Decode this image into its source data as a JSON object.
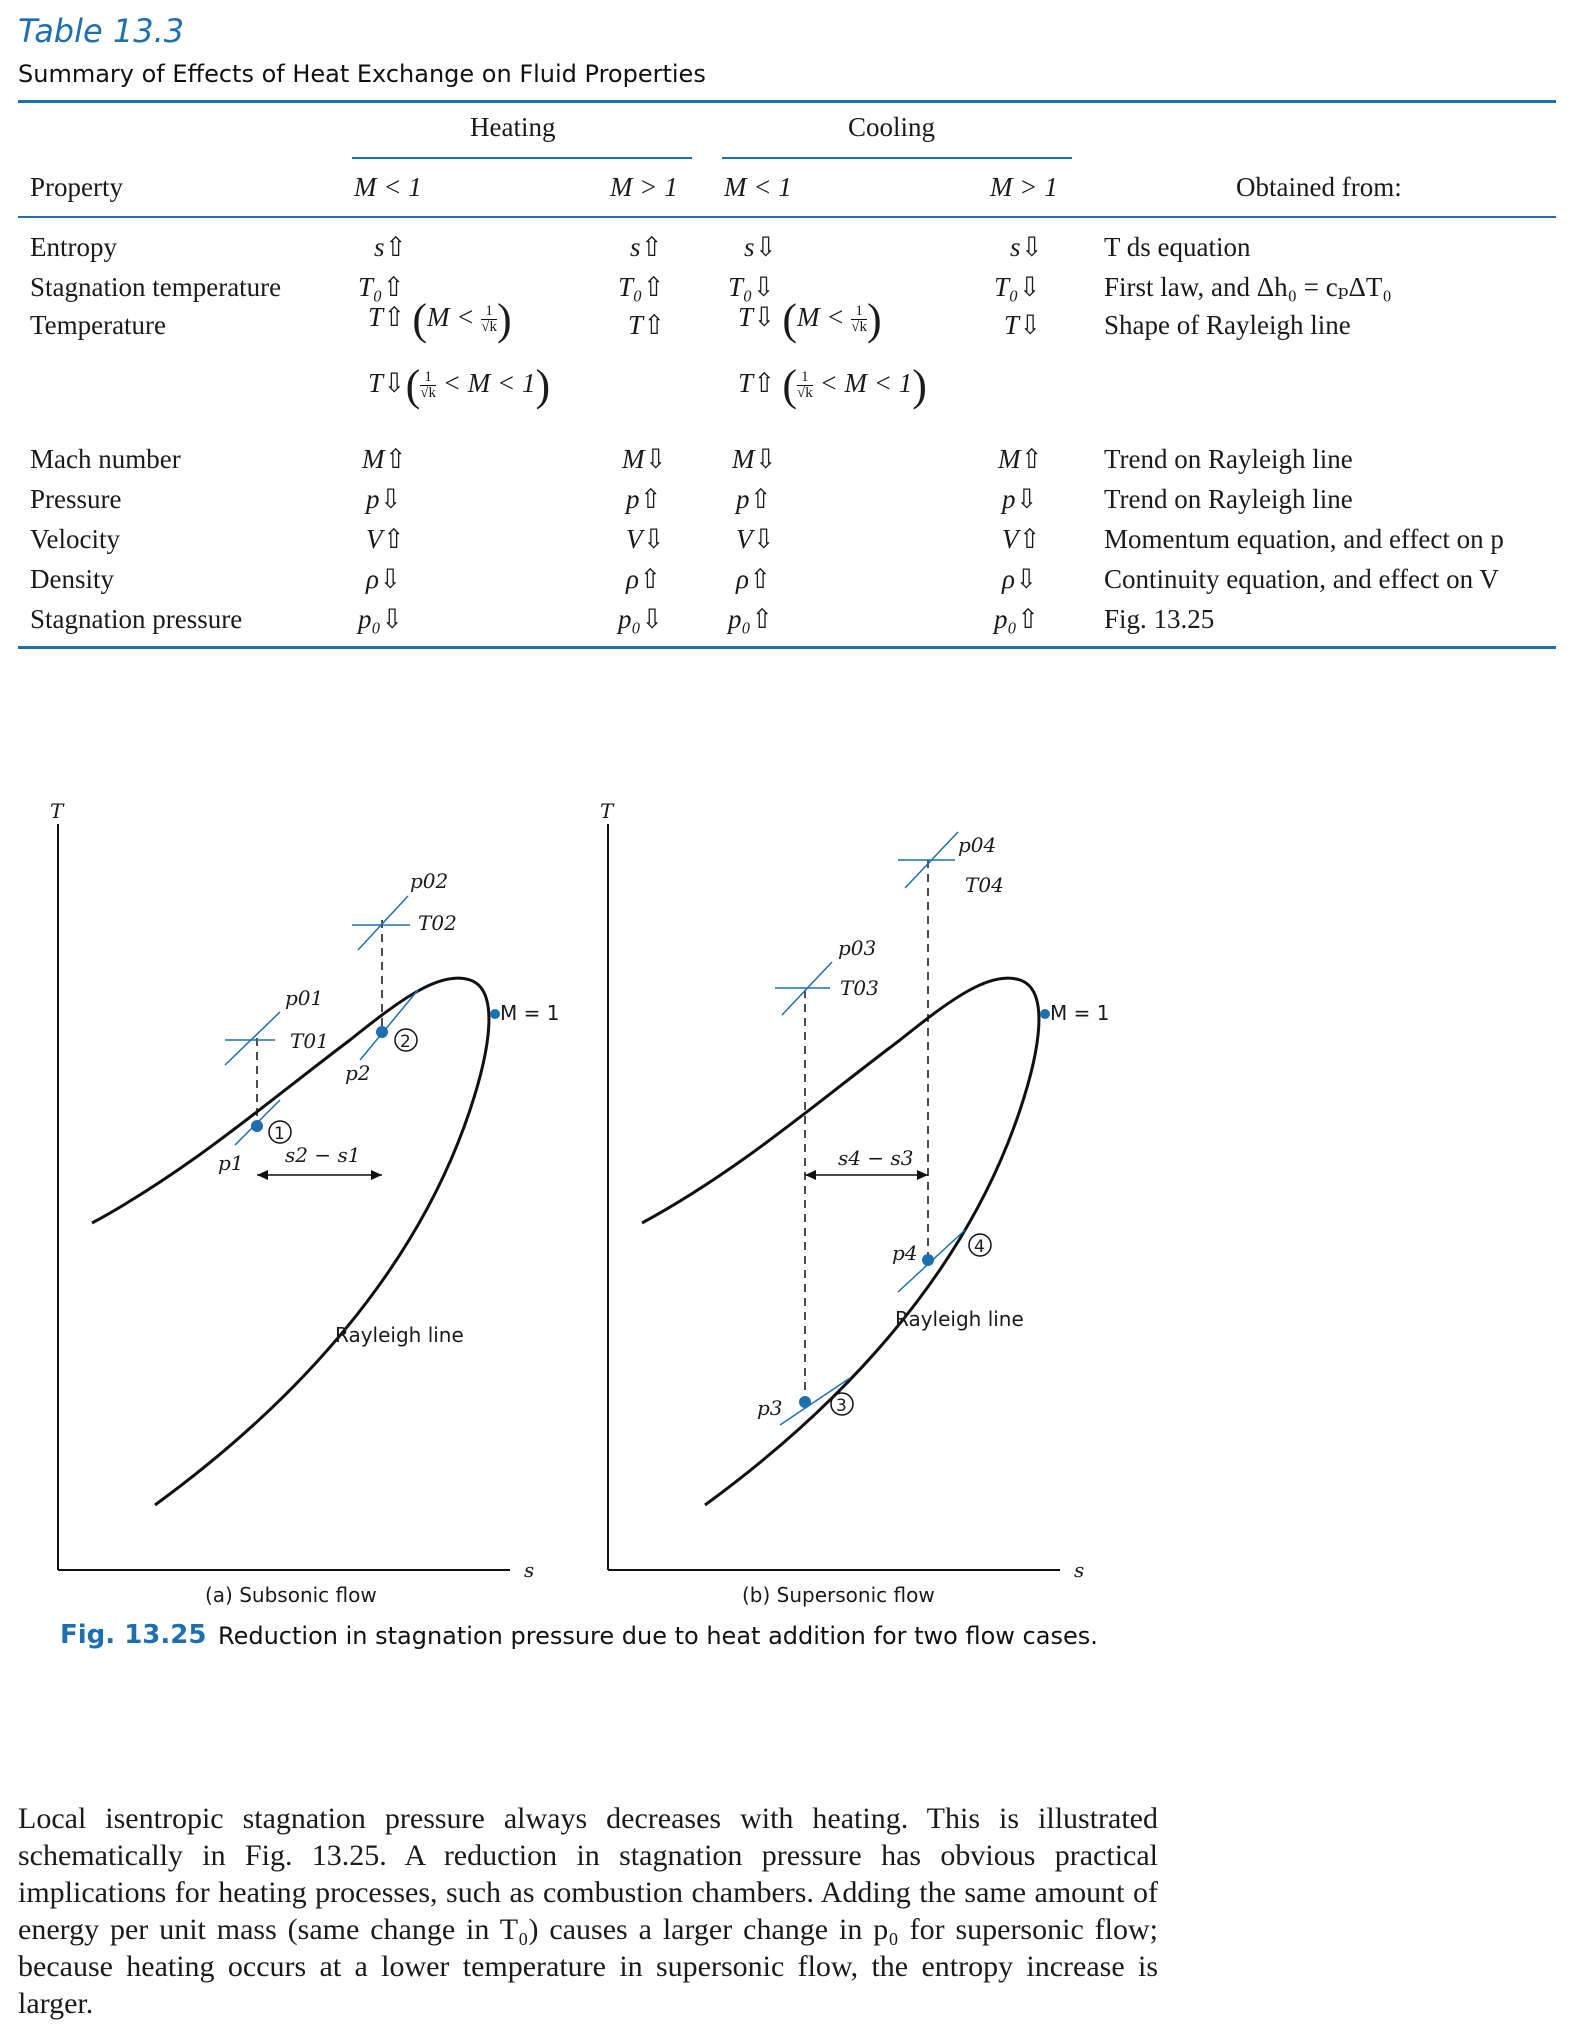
{
  "table": {
    "label": "Table 13.3",
    "title": "Summary of Effects of Heat Exchange on Fluid Properties",
    "group_headers": {
      "heating": "Heating",
      "cooling": "Cooling"
    },
    "col_headers": {
      "property": "Property",
      "h_sub": "M < 1",
      "h_sup": "M > 1",
      "c_sub": "M < 1",
      "c_sup": "M > 1",
      "source": "Obtained from:"
    },
    "rows": [
      {
        "property": "Entropy",
        "h_sub": "s⇧",
        "h_sup": "s⇧",
        "c_sub": "s⇩",
        "c_sup": "s⇩",
        "source": "T ds equation"
      },
      {
        "property": "Stagnation temperature",
        "h_sub": "T₀⇧",
        "h_sup": "T₀⇧",
        "c_sub": "T₀⇩",
        "c_sup": "T₀⇩",
        "source": "First law, and Δh₀ = cₚΔT₀"
      },
      {
        "property": "Temperature",
        "h_sub": "T⇧",
        "h_sup": "T⇧",
        "c_sub": "T⇩",
        "c_sup": "T⇩",
        "source": "Shape of Rayleigh line"
      },
      {
        "property": "",
        "h_sub": "T⇩",
        "h_sup": "",
        "c_sub": "T⇧",
        "c_sup": "",
        "source": ""
      },
      {
        "property": "Mach number",
        "h_sub": "M⇧",
        "h_sup": "M⇩",
        "c_sub": "M⇩",
        "c_sup": "M⇧",
        "source": "Trend on Rayleigh line"
      },
      {
        "property": "Pressure",
        "h_sub": "p⇩",
        "h_sup": "p⇧",
        "c_sub": "p⇧",
        "c_sup": "p⇩",
        "source": "Trend on Rayleigh line"
      },
      {
        "property": "Velocity",
        "h_sub": "V⇧",
        "h_sup": "V⇩",
        "c_sub": "V⇩",
        "c_sup": "V⇧",
        "source": "Momentum equation, and effect on p"
      },
      {
        "property": "Density",
        "h_sub": "ρ⇩",
        "h_sup": "ρ⇧",
        "c_sub": "ρ⇧",
        "c_sup": "ρ⇩",
        "source": "Continuity equation, and effect on V"
      },
      {
        "property": "Stagnation pressure",
        "h_sub": "p₀⇩",
        "h_sup": "p₀⇩",
        "c_sub": "p₀⇧",
        "c_sup": "p₀⇧",
        "source": "Fig. 13.25"
      }
    ],
    "temp_conditions": {
      "lt_prefix": "M <",
      "gt_suffix": "< M < 1",
      "frac_num": "1",
      "frac_den": "√k"
    }
  },
  "figure": {
    "axis_T": "T",
    "axis_s": "s",
    "rayleigh_label": "Rayleigh line",
    "mach_label": "M = 1",
    "panel_a": {
      "caption": "(a) Subsonic flow",
      "labels": {
        "p01": "p01",
        "T01": "T01",
        "p02": "p02",
        "T02": "T02",
        "p1": "p1",
        "p2": "p2",
        "ds": "s2 − s1",
        "pt1": "1",
        "pt2": "2"
      }
    },
    "panel_b": {
      "caption": "(b) Supersonic flow",
      "labels": {
        "p03": "p03",
        "T03": "T03",
        "p04": "p04",
        "T04": "T04",
        "p3": "p3",
        "p4": "p4",
        "ds": "s4 − s3",
        "pt3": "3",
        "pt4": "4"
      }
    },
    "caption_number": "Fig. 13.25",
    "caption_text": "Reduction in stagnation pressure due to heat addition for two flow cases.",
    "colors": {
      "accent": "#1e6fb0",
      "point": "#1e6fb0"
    }
  },
  "paragraph": "Local isentropic stagnation pressure always decreases with heating. This is illustrated schematically in Fig. 13.25. A reduction in stagnation pressure has obvious practical implications for heating processes, such as combustion chambers. Adding the same amount of energy per unit mass (same change in T₀) causes a larger change in p₀ for supersonic flow; because heating occurs at a lower temperature in supersonic flow, the entropy increase is larger."
}
